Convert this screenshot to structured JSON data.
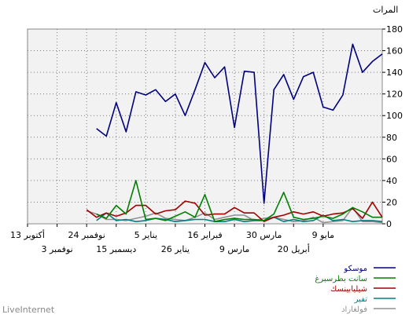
{
  "chart_data": {
    "type": "line",
    "ylabel": "المرات",
    "ylim": [
      0,
      180
    ],
    "yticks": [
      0,
      20,
      40,
      60,
      80,
      100,
      120,
      140,
      160,
      180
    ],
    "x_tick_labels": [
      "13 أكتوبر",
      "3 نوفمبر",
      "24 نوفمبر",
      "15 ديسمبر",
      "5 يناير",
      "26 يناير",
      "16 فبراير",
      "9 مارس",
      "30 مارس",
      "20 أبريل",
      "9 مايو"
    ],
    "x_label_positions": [
      36,
      33,
      30,
      27,
      24,
      21,
      18,
      15,
      12,
      9,
      6
    ],
    "x_count": 37,
    "grid": true,
    "series": [
      {
        "name": "موسكو",
        "color": "#000080",
        "values": [
          157,
          150,
          140,
          166,
          119,
          105,
          108,
          140,
          136,
          115,
          138,
          124,
          19,
          140,
          141,
          89,
          145,
          135,
          149,
          124,
          100,
          120,
          113,
          124,
          119,
          122,
          85,
          112,
          81,
          88
        ]
      },
      {
        "name": "سانت بطرسبرغ",
        "color": "#008000",
        "values": [
          6,
          6,
          11,
          15,
          9,
          5,
          7,
          5,
          4,
          6,
          29,
          9,
          3,
          4,
          4,
          5,
          4,
          2,
          27,
          6,
          11,
          7,
          3,
          5,
          4,
          40,
          9,
          17,
          5,
          9
        ]
      },
      {
        "name": "شيليابينسك",
        "color": "#a00000",
        "values": [
          6,
          20,
          5,
          14,
          10,
          9,
          7,
          11,
          9,
          11,
          8,
          6,
          2,
          10,
          10,
          15,
          9,
          9,
          8,
          19,
          21,
          13,
          12,
          9,
          17,
          17,
          10,
          7,
          10,
          6,
          13
        ]
      },
      {
        "name": "تفير",
        "color": "#008080",
        "values": [
          2,
          3,
          3,
          2,
          4,
          3,
          8,
          3,
          2,
          4,
          2,
          6,
          3,
          3,
          2,
          4,
          2,
          2,
          4,
          4,
          3,
          2,
          4,
          5,
          3,
          2,
          4,
          3,
          10,
          3
        ]
      },
      {
        "name": "فولغاراد",
        "color": "#909090",
        "values": [
          1,
          2,
          2,
          15,
          3,
          2,
          1,
          6,
          3,
          2,
          4,
          6,
          5,
          3,
          8,
          8,
          6,
          4,
          10,
          6,
          3,
          4,
          5,
          10,
          7,
          5,
          3,
          4,
          4,
          9,
          12
        ]
      }
    ]
  },
  "footer": "LiveInternet"
}
